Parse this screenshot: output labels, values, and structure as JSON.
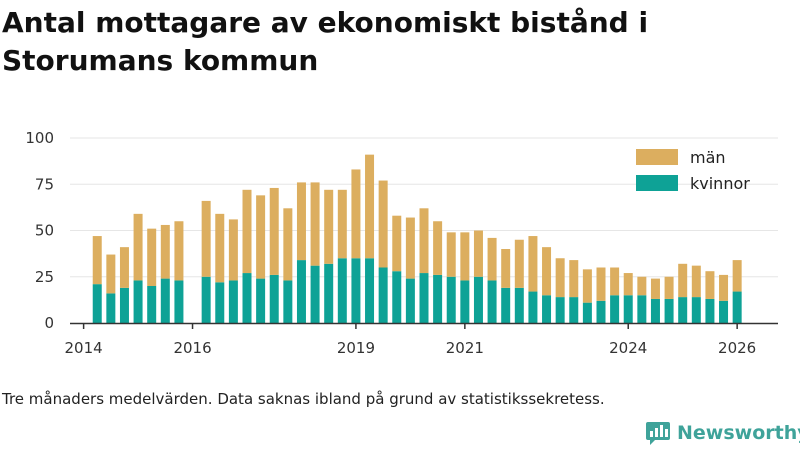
{
  "title": "Antal mottagare av ekonomiskt bistånd i Storumans kommun",
  "caption": "Tre månaders medelvärden. Data saknas ibland på grund av statistikssekretess.",
  "brand": {
    "name": "Newsworthy",
    "icon": "newsworthy-logo-icon"
  },
  "colors": {
    "men": "#dcae5f",
    "women": "#0ea296",
    "axis": "#333333",
    "grid": "#e6e6e6"
  },
  "chart_data": {
    "type": "bar",
    "stacked": true,
    "title": "Antal mottagare av ekonomiskt bistånd i Storumans kommun",
    "xlabel": "",
    "ylabel": "",
    "ylim": [
      0,
      100
    ],
    "yticks": [
      0,
      25,
      50,
      75,
      100
    ],
    "xlim": [
      2013.75,
      2026.75
    ],
    "xticks": [
      2014,
      2016,
      2019,
      2021,
      2024,
      2026
    ],
    "legend_position": "top-right",
    "x": [
      2014.25,
      2014.5,
      2014.75,
      2015.0,
      2015.25,
      2015.5,
      2015.75,
      2016.25,
      2016.5,
      2016.75,
      2017.0,
      2017.25,
      2017.5,
      2017.75,
      2018.0,
      2018.25,
      2018.5,
      2018.75,
      2019.0,
      2019.25,
      2019.5,
      2019.75,
      2020.0,
      2020.25,
      2020.5,
      2020.75,
      2021.0,
      2021.25,
      2021.5,
      2021.75,
      2022.0,
      2022.25,
      2022.5,
      2022.75,
      2023.0,
      2023.25,
      2023.5,
      2023.75,
      2024.0,
      2024.25,
      2024.5,
      2024.75,
      2025.0,
      2025.25,
      2025.5,
      2025.75,
      2026.0
    ],
    "series": [
      {
        "name": "kvinnor",
        "values": [
          21,
          16,
          19,
          23,
          20,
          24,
          23,
          25,
          22,
          23,
          27,
          24,
          26,
          23,
          34,
          31,
          32,
          35,
          35,
          35,
          30,
          28,
          24,
          27,
          26,
          25,
          23,
          25,
          23,
          19,
          19,
          17,
          15,
          14,
          14,
          11,
          12,
          15,
          15,
          15,
          13,
          13,
          14,
          14,
          13,
          12,
          17
        ]
      },
      {
        "name": "män",
        "values": [
          26,
          21,
          22,
          36,
          31,
          29,
          32,
          41,
          37,
          33,
          45,
          45,
          47,
          39,
          42,
          45,
          40,
          37,
          48,
          56,
          47,
          30,
          33,
          35,
          29,
          24,
          26,
          25,
          23,
          21,
          26,
          30,
          26,
          21,
          20,
          18,
          18,
          15,
          12,
          10,
          11,
          12,
          18,
          17,
          15,
          14,
          17
        ]
      }
    ],
    "legend": [
      "män",
      "kvinnor"
    ]
  }
}
